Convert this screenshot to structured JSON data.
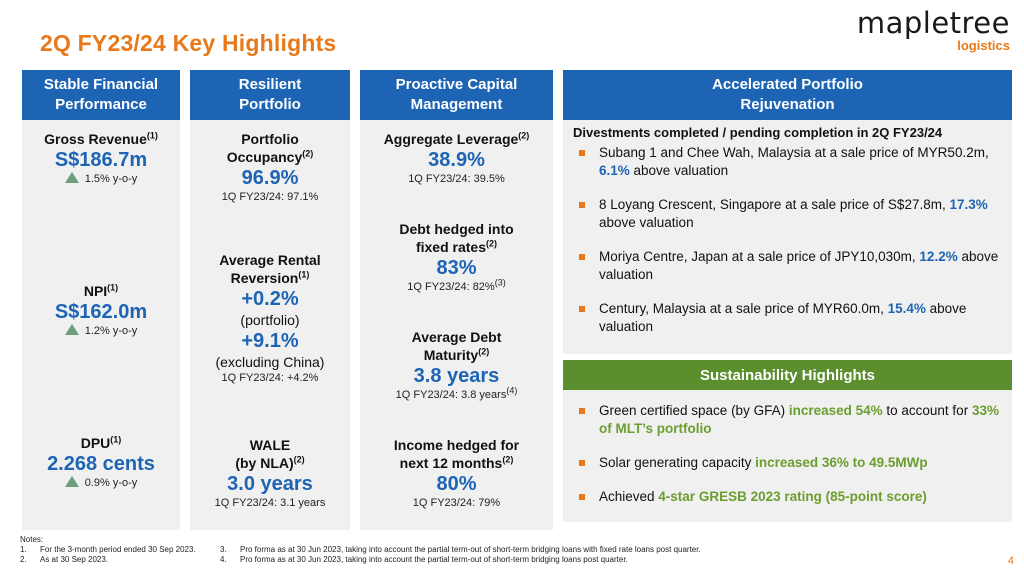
{
  "title": "2Q FY23/24 Key Highlights",
  "logo": {
    "brand": "mapletree",
    "sub": "logistics"
  },
  "columns": {
    "financial": {
      "header_l1": "Stable Financial",
      "header_l2": "Performance",
      "gross_revenue": {
        "label": "Gross Revenue",
        "note": "(1)",
        "value": "S$186.7m",
        "change": "1.5% y-o-y"
      },
      "npi": {
        "label": "NPI",
        "note": "(1)",
        "value": "S$162.0m",
        "change": "1.2% y-o-y"
      },
      "dpu": {
        "label": "DPU",
        "note": "(1)",
        "value": "2.268 cents",
        "change": "0.9% y-o-y"
      }
    },
    "portfolio": {
      "header_l1": "Resilient",
      "header_l2": "Portfolio",
      "occupancy": {
        "label_l1": "Portfolio",
        "label_l2": "Occupancy",
        "note": "(2)",
        "value": "96.9%",
        "prior": "1Q FY23/24: 97.1%"
      },
      "reversion": {
        "label_l1": "Average Rental",
        "label_l2": "Reversion",
        "note": "(1)",
        "value1": "+0.2%",
        "desc1": "(portfolio)",
        "value2": "+9.1%",
        "desc2": "(excluding China)",
        "prior": "1Q FY23/24: +4.2%"
      },
      "wale": {
        "label_l1": "WALE",
        "label_l2": "(by NLA)",
        "note": "(2)",
        "value": "3.0 years",
        "prior": "1Q FY23/24: 3.1 years"
      }
    },
    "capital": {
      "header_l1": "Proactive Capital",
      "header_l2": "Management",
      "leverage": {
        "label": "Aggregate Leverage",
        "note": "(2)",
        "value": "38.9%",
        "prior": "1Q FY23/24: 39.5%"
      },
      "hedged": {
        "label_l1": "Debt hedged into",
        "label_l2": "fixed rates",
        "note": "(2)",
        "value": "83%",
        "prior": "1Q FY23/24: 82%",
        "prior_note": "(3)"
      },
      "maturity": {
        "label_l1": "Average Debt",
        "label_l2": "Maturity",
        "note": "(2)",
        "value": "3.8 years",
        "prior": "1Q FY23/24: 3.8 years",
        "prior_note": "(4)"
      },
      "income": {
        "label_l1": "Income hedged for",
        "label_l2": "next 12 months",
        "note": "(2)",
        "value": "80%",
        "prior": "1Q FY23/24: 79%"
      }
    }
  },
  "rejuvenation": {
    "header_l1": "Accelerated Portfolio",
    "header_l2": "Rejuvenation",
    "subhead": "Divestments completed / pending completion in 2Q FY23/24",
    "items": [
      {
        "text": "Subang 1 and Chee Wah, Malaysia at a sale price of MYR50.2m, ",
        "hl": "6.1%",
        "tail": " above valuation"
      },
      {
        "text": "8 Loyang Crescent, Singapore at a sale price of S$27.8m, ",
        "hl": "17.3%",
        "tail": " above valuation"
      },
      {
        "text": "Moriya Centre, Japan at a sale price of JPY10,030m, ",
        "hl": "12.2%",
        "tail": " above valuation"
      },
      {
        "text": "Century, Malaysia at a sale price of MYR60.0m, ",
        "hl": "15.4%",
        "tail": " above valuation"
      }
    ]
  },
  "sustainability": {
    "header": "Sustainability Highlights",
    "items": [
      {
        "text": "Green certified space (by GFA) ",
        "hl": "increased 54%",
        "mid": " to account for ",
        "hl2": "33% of MLT’s portfolio"
      },
      {
        "text": "Solar generating capacity ",
        "hl": "increased 36% to 49.5MWp",
        "mid": "",
        "hl2": ""
      },
      {
        "text": "Achieved ",
        "hl": "4-star GRESB 2023 rating (85-point score)",
        "mid": "",
        "hl2": ""
      }
    ]
  },
  "notes": {
    "heading": "Notes:",
    "n1": {
      "num": "1.",
      "text": "For the 3-month period ended 30 Sep 2023."
    },
    "n2": {
      "num": "2.",
      "text": "As at 30 Sep 2023."
    },
    "n3": {
      "num": "3.",
      "text": "Pro forma as at 30 Jun 2023, taking into account the partial term-out of short-term bridging loans with fixed rate loans post quarter."
    },
    "n4": {
      "num": "4.",
      "text": "Pro forma as at 30 Jun 2023, taking into account the partial term-out of short-term bridging loans post quarter."
    }
  },
  "page_number": "4",
  "colors": {
    "blue": "#1d64b5",
    "orange": "#e8791a",
    "green": "#5b8e2c",
    "panel": "#f0f0f0"
  }
}
